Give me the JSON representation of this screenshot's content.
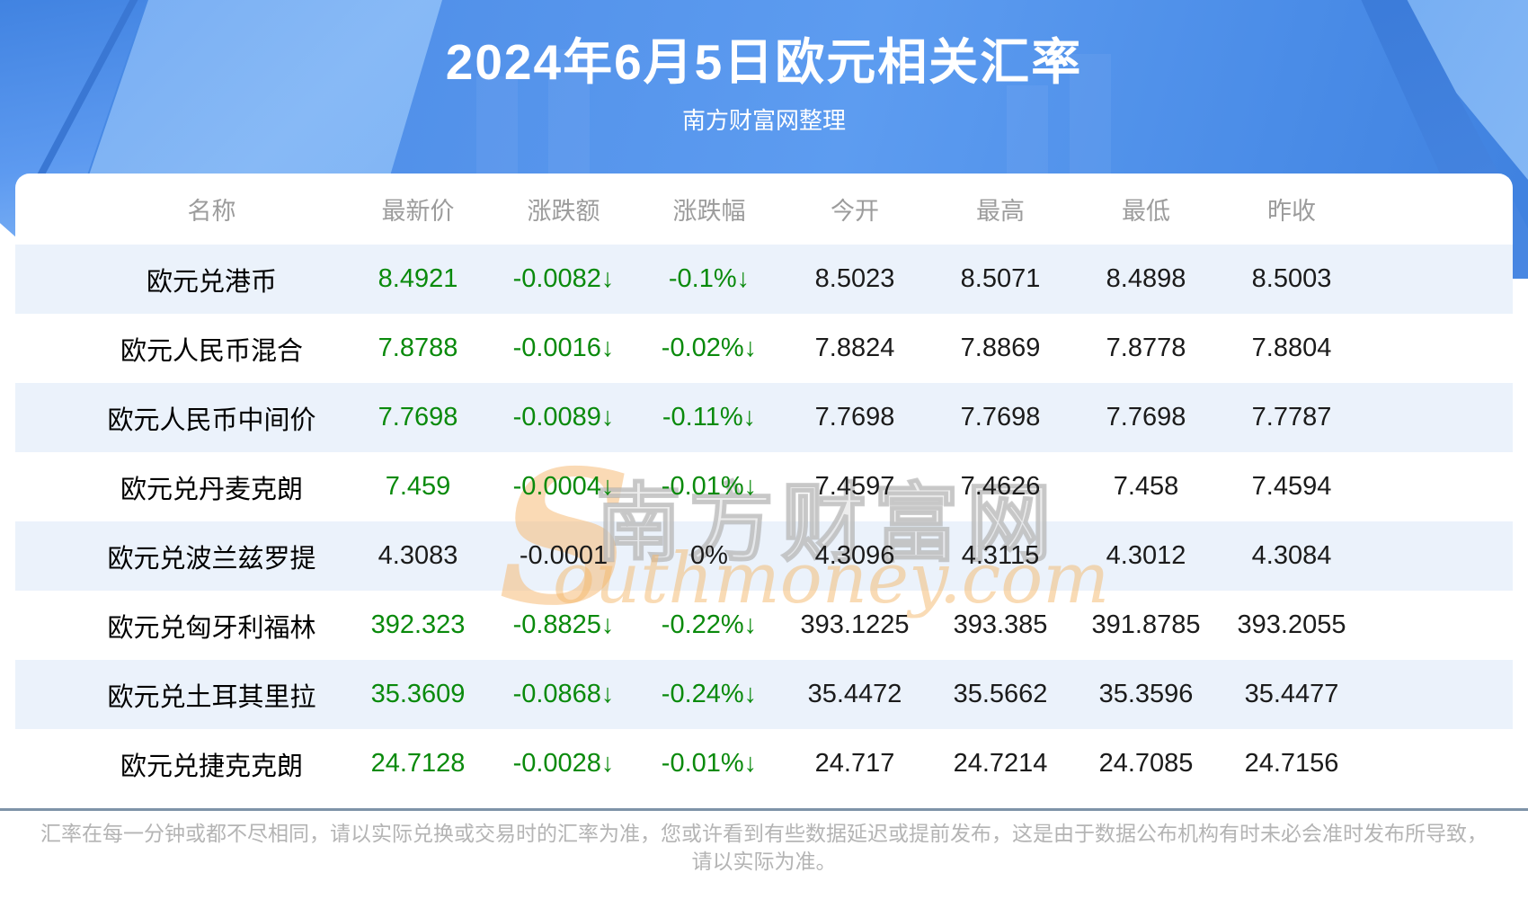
{
  "header": {
    "title": "2024年6月5日欧元相关汇率",
    "subtitle": "南方财富网整理"
  },
  "table": {
    "columns": [
      "名称",
      "最新价",
      "涨跌额",
      "涨跌幅",
      "今开",
      "最高",
      "最低",
      "昨收"
    ],
    "rows": [
      {
        "name": "欧元兑港币",
        "last": "8.4921",
        "change": "-0.0082↓",
        "pct": "-0.1%↓",
        "open": "8.5023",
        "high": "8.5071",
        "low": "8.4898",
        "prev": "8.5003",
        "dir": "down"
      },
      {
        "name": "欧元人民币混合",
        "last": "7.8788",
        "change": "-0.0016↓",
        "pct": "-0.02%↓",
        "open": "7.8824",
        "high": "7.8869",
        "low": "7.8778",
        "prev": "7.8804",
        "dir": "down"
      },
      {
        "name": "欧元人民币中间价",
        "last": "7.7698",
        "change": "-0.0089↓",
        "pct": "-0.11%↓",
        "open": "7.7698",
        "high": "7.7698",
        "low": "7.7698",
        "prev": "7.7787",
        "dir": "down"
      },
      {
        "name": "欧元兑丹麦克朗",
        "last": "7.459",
        "change": "-0.0004↓",
        "pct": "-0.01%↓",
        "open": "7.4597",
        "high": "7.4626",
        "low": "7.458",
        "prev": "7.4594",
        "dir": "down"
      },
      {
        "name": "欧元兑波兰兹罗提",
        "last": "4.3083",
        "change": "-0.0001",
        "pct": "0%",
        "open": "4.3096",
        "high": "4.3115",
        "low": "4.3012",
        "prev": "4.3084",
        "dir": "flat"
      },
      {
        "name": "欧元兑匈牙利福林",
        "last": "392.323",
        "change": "-0.8825↓",
        "pct": "-0.22%↓",
        "open": "393.1225",
        "high": "393.385",
        "low": "391.8785",
        "prev": "393.2055",
        "dir": "down"
      },
      {
        "name": "欧元兑土耳其里拉",
        "last": "35.3609",
        "change": "-0.0868↓",
        "pct": "-0.24%↓",
        "open": "35.4472",
        "high": "35.5662",
        "low": "35.3596",
        "prev": "35.4477",
        "dir": "down"
      },
      {
        "name": "欧元兑捷克克朗",
        "last": "24.7128",
        "change": "-0.0028↓",
        "pct": "-0.01%↓",
        "open": "24.717",
        "high": "24.7214",
        "low": "24.7085",
        "prev": "24.7156",
        "dir": "down"
      }
    ]
  },
  "watermark": {
    "s": "S",
    "cn": "南方财富网",
    "en": "outhmoney.com"
  },
  "footer": {
    "disclaimer_line1": "汇率在每一分钟或都不尽相同，请以实际兑换或交易时的汇率为准，您或许看到有些数据延迟或提前发布，这是由于数据公布机构有时未必会准时发布所导致，",
    "disclaimer_line2": "请以实际为准。"
  },
  "colors": {
    "accent_blue": "#4285e2",
    "down_green": "#0a8a0c",
    "row_alt_blue": "#ebf2fb",
    "divider_slate": "#7e93a8",
    "header_text_gray": "#9c9c9c",
    "watermark_orange": "#f4b86c"
  }
}
